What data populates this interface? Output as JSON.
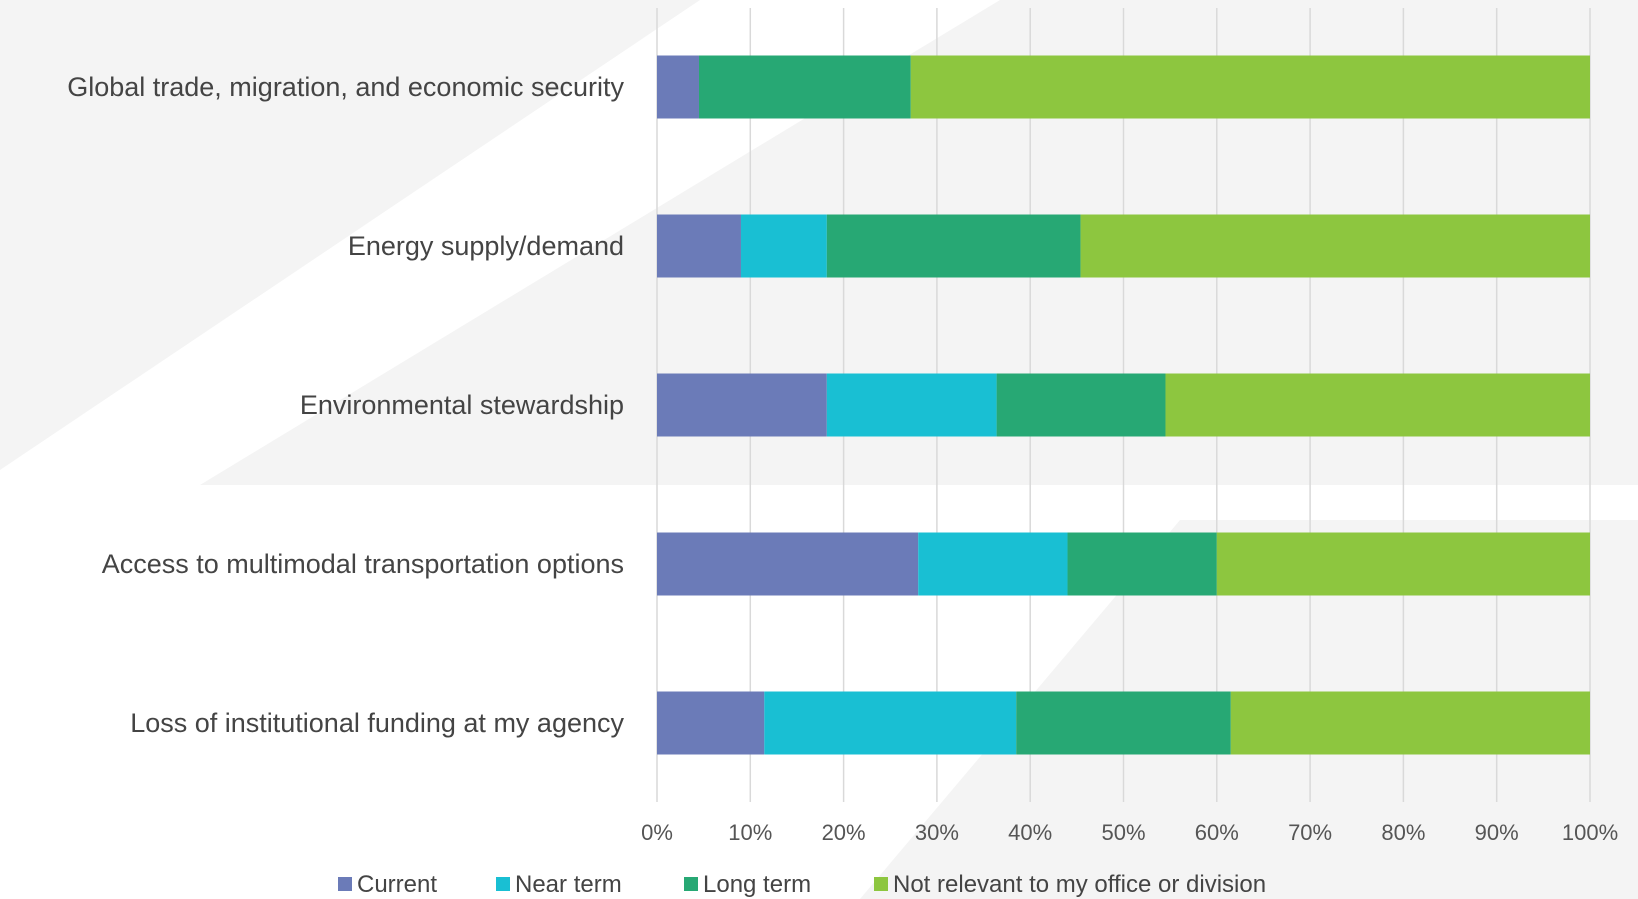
{
  "chart_data": {
    "type": "bar",
    "orientation": "horizontal",
    "stacked": true,
    "percent_stacked": true,
    "categories": [
      "Global trade, migration, and economic security",
      "Energy supply/demand",
      "Environmental stewardship",
      "Access to multimodal transportation options",
      "Loss of institutional funding at my agency"
    ],
    "series": [
      {
        "name": "Current",
        "color": "#6b7bb8",
        "values": [
          4.5,
          9.0,
          18.2,
          28.0,
          11.5
        ]
      },
      {
        "name": "Near term",
        "color": "#19bfd3",
        "values": [
          0.0,
          9.2,
          18.2,
          16.0,
          27.0
        ]
      },
      {
        "name": "Long term",
        "color": "#27a874",
        "values": [
          22.7,
          27.2,
          18.1,
          16.0,
          23.0
        ]
      },
      {
        "name": "Not relevant to my office or division",
        "color": "#8dc63f",
        "values": [
          72.8,
          54.6,
          45.5,
          40.0,
          38.5
        ]
      }
    ],
    "xlim": [
      0,
      100
    ],
    "xticks": [
      "0%",
      "10%",
      "20%",
      "30%",
      "40%",
      "50%",
      "60%",
      "70%",
      "80%",
      "90%",
      "100%"
    ],
    "grid": true,
    "legend_position": "bottom",
    "title": "",
    "xlabel": "",
    "ylabel": ""
  }
}
